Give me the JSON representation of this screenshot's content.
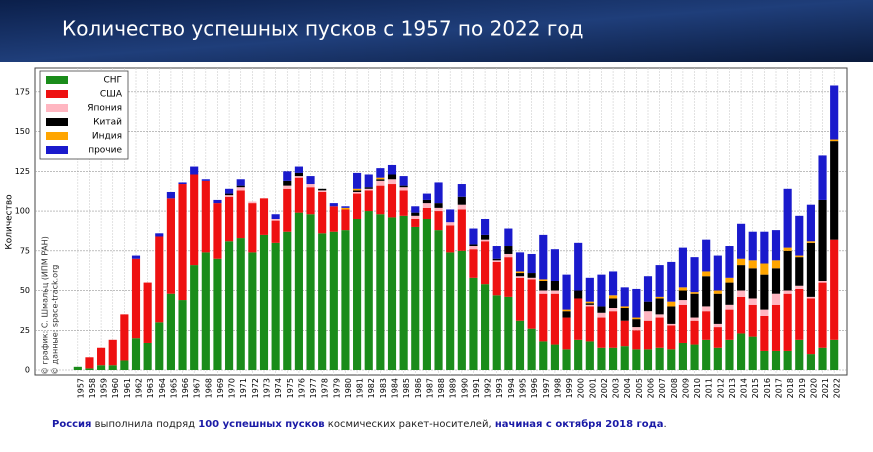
{
  "chart_data": {
    "type": "bar",
    "stacked": true,
    "title": "Количество успешных пусков с 1957 по 2022 год",
    "y_label": "Количество",
    "credits": [
      "© график: С. Шмальц (ИПМ РАН)",
      "© данные: space-track.org"
    ],
    "caption": [
      {
        "text": "Россия",
        "bold": true
      },
      {
        "text": " выполнила подряд ",
        "bold": false
      },
      {
        "text": "100 успешных пусков",
        "bold": true
      },
      {
        "text": " космических ракет-носителей, ",
        "bold": false
      },
      {
        "text": "начиная с октября 2018 года",
        "bold": true
      },
      {
        "text": ".",
        "bold": false
      }
    ],
    "categories": [
      "1957",
      "1958",
      "1959",
      "1960",
      "1961",
      "1962",
      "1963",
      "1964",
      "1965",
      "1966",
      "1967",
      "1968",
      "1969",
      "1970",
      "1971",
      "1972",
      "1973",
      "1974",
      "1975",
      "1976",
      "1977",
      "1978",
      "1979",
      "1980",
      "1981",
      "1982",
      "1983",
      "1984",
      "1985",
      "1986",
      "1987",
      "1988",
      "1989",
      "1990",
      "1991",
      "1992",
      "1993",
      "1994",
      "1995",
      "1996",
      "1997",
      "1998",
      "1999",
      "2000",
      "2001",
      "2002",
      "2003",
      "2004",
      "2005",
      "2006",
      "2007",
      "2008",
      "2009",
      "2010",
      "2011",
      "2012",
      "2013",
      "2014",
      "2015",
      "2016",
      "2017",
      "2018",
      "2019",
      "2020",
      "2021",
      "2022"
    ],
    "series": [
      {
        "name": "СНГ",
        "color": "#1a8c1a",
        "values": [
          2,
          1,
          3,
          3,
          6,
          20,
          17,
          30,
          48,
          44,
          66,
          74,
          70,
          81,
          83,
          74,
          85,
          80,
          87,
          99,
          98,
          86,
          87,
          88,
          95,
          100,
          98,
          96,
          97,
          90,
          95,
          88,
          74,
          75,
          58,
          54,
          47,
          46,
          31,
          26,
          18,
          16,
          13,
          19,
          18,
          14,
          14,
          15,
          13,
          13,
          14,
          13,
          17,
          16,
          19,
          14,
          19,
          23,
          21,
          12,
          12,
          12,
          19,
          10,
          14,
          19
        ]
      },
      {
        "name": "США",
        "color": "#ee1111",
        "values": [
          0,
          7,
          11,
          16,
          29,
          50,
          38,
          54,
          60,
          73,
          57,
          45,
          35,
          28,
          30,
          31,
          23,
          14,
          27,
          22,
          17,
          26,
          16,
          13,
          16,
          13,
          18,
          21,
          16,
          5,
          7,
          12,
          17,
          26,
          18,
          27,
          21,
          25,
          27,
          31,
          30,
          32,
          20,
          26,
          22,
          19,
          23,
          16,
          12,
          18,
          19,
          15,
          24,
          15,
          18,
          13,
          19,
          23,
          20,
          22,
          29,
          36,
          32,
          35,
          41,
          63
        ]
      },
      {
        "name": "Япония",
        "color": "#ffb6c1",
        "values": [
          0,
          0,
          0,
          0,
          0,
          0,
          0,
          0,
          0,
          0,
          0,
          0,
          0,
          1,
          2,
          1,
          0,
          1,
          2,
          1,
          2,
          1,
          0,
          0,
          1,
          1,
          3,
          3,
          2,
          2,
          3,
          2,
          2,
          3,
          2,
          1,
          1,
          2,
          1,
          1,
          2,
          2,
          0,
          0,
          1,
          3,
          2,
          0,
          2,
          6,
          2,
          1,
          3,
          2,
          3,
          2,
          3,
          4,
          4,
          4,
          7,
          2,
          2,
          1,
          1,
          0
        ]
      },
      {
        "name": "Китай",
        "color": "#000000",
        "values": [
          0,
          0,
          0,
          0,
          0,
          0,
          0,
          0,
          0,
          0,
          0,
          0,
          0,
          1,
          1,
          0,
          0,
          0,
          3,
          2,
          0,
          1,
          0,
          0,
          1,
          1,
          1,
          3,
          1,
          2,
          2,
          3,
          0,
          5,
          1,
          3,
          1,
          5,
          2,
          3,
          6,
          6,
          4,
          5,
          1,
          4,
          6,
          8,
          5,
          6,
          10,
          11,
          6,
          15,
          19,
          19,
          14,
          16,
          19,
          22,
          16,
          25,
          18,
          34,
          51,
          62
        ]
      },
      {
        "name": "Индия",
        "color": "#ffa500",
        "values": [
          0,
          0,
          0,
          0,
          0,
          0,
          0,
          0,
          0,
          0,
          0,
          0,
          0,
          0,
          0,
          0,
          0,
          0,
          0,
          0,
          0,
          0,
          0,
          1,
          1,
          0,
          1,
          0,
          0,
          0,
          0,
          0,
          0,
          0,
          0,
          0,
          0,
          0,
          1,
          0,
          1,
          0,
          1,
          0,
          1,
          0,
          2,
          1,
          1,
          0,
          1,
          3,
          2,
          1,
          3,
          2,
          3,
          4,
          5,
          7,
          5,
          2,
          1,
          1,
          0,
          1
        ]
      },
      {
        "name": "прочие",
        "color": "#1a1acc",
        "values": [
          0,
          0,
          0,
          0,
          0,
          2,
          0,
          2,
          4,
          1,
          5,
          1,
          2,
          3,
          4,
          0,
          0,
          3,
          6,
          4,
          5,
          0,
          2,
          1,
          10,
          8,
          6,
          6,
          6,
          4,
          4,
          13,
          8,
          8,
          10,
          10,
          8,
          11,
          12,
          12,
          28,
          20,
          22,
          30,
          15,
          20,
          15,
          12,
          18,
          16,
          20,
          25,
          25,
          22,
          20,
          22,
          20,
          22,
          18,
          20,
          19,
          37,
          25,
          23,
          28,
          34
        ]
      }
    ],
    "ylim": [
      0,
      190
    ],
    "yticks": [
      0,
      25,
      50,
      75,
      100,
      125,
      150,
      175
    ],
    "grid": true,
    "legend": "upper left"
  }
}
